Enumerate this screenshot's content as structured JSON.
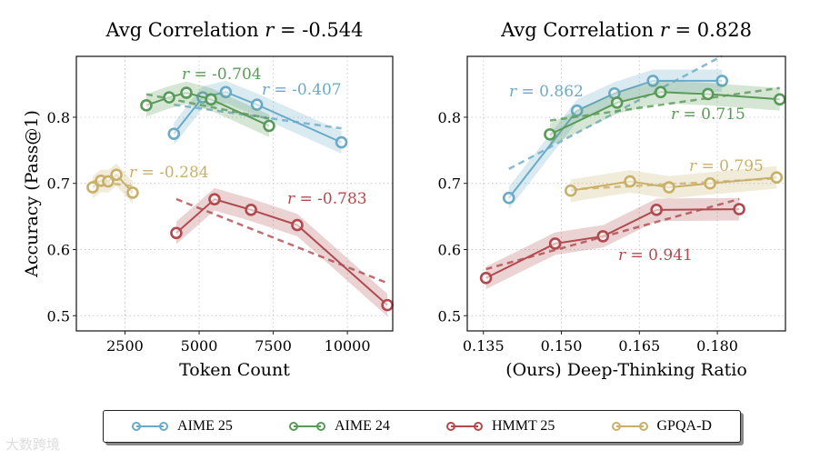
{
  "chart_data": [
    {
      "type": "line",
      "title_prefix": "Avg Correlation ",
      "title_var": "r",
      "title_value": " = -0.544",
      "xlabel": "Token Count",
      "ylabel": "Accuracy (Pass@1)",
      "xlim": [
        860,
        11530
      ],
      "ylim": [
        0.477,
        0.892
      ],
      "xticks": [
        2500,
        5000,
        7500,
        10000
      ],
      "xtick_labels": [
        "2500",
        "5000",
        "7500",
        "10000"
      ],
      "yticks": [
        0.5,
        0.6,
        0.7,
        0.8
      ],
      "ytick_labels": [
        "0.5",
        "0.6",
        "0.7",
        "0.8"
      ],
      "grid": true,
      "series": [
        {
          "name": "AIME 25",
          "r_label": "= -0.407",
          "x": [
            4150,
            5120,
            5900,
            6950,
            9800
          ],
          "y": [
            0.775,
            0.83,
            0.838,
            0.819,
            0.762
          ]
        },
        {
          "name": "AIME 24",
          "r_label": "= -0.704",
          "x": [
            3220,
            3990,
            4570,
            5400,
            7360
          ],
          "y": [
            0.818,
            0.83,
            0.837,
            0.827,
            0.787
          ]
        },
        {
          "name": "HMMT 25",
          "r_label": "= -0.783",
          "x": [
            4230,
            5520,
            6750,
            8310,
            11350
          ],
          "y": [
            0.625,
            0.676,
            0.66,
            0.637,
            0.516
          ]
        },
        {
          "name": "GPQA-D",
          "r_label": "= -0.284",
          "x": [
            1410,
            1690,
            1930,
            2210,
            2760
          ],
          "y": [
            0.694,
            0.704,
            0.703,
            0.713,
            0.686
          ]
        }
      ]
    },
    {
      "type": "line",
      "title_prefix": "Avg Correlation ",
      "title_var": "r",
      "title_value": " = 0.828",
      "xlabel": "(Ours) Deep-Thinking Ratio",
      "ylabel": "",
      "xlim": [
        0.1319,
        0.1931
      ],
      "ylim": [
        0.477,
        0.892
      ],
      "xticks": [
        0.135,
        0.15,
        0.165,
        0.18
      ],
      "xtick_labels": [
        "0.135",
        "0.150",
        "0.165",
        "0.180"
      ],
      "yticks": [
        0.5,
        0.6,
        0.7,
        0.8
      ],
      "ytick_labels": [
        "0.5",
        "0.6",
        "0.7",
        "0.8"
      ],
      "grid": true,
      "series": [
        {
          "name": "AIME 25",
          "r_label": "= 0.862",
          "x": [
            0.1399,
            0.153,
            0.1602,
            0.1676,
            0.1809
          ],
          "y": [
            0.678,
            0.81,
            0.836,
            0.855,
            0.855
          ]
        },
        {
          "name": "AIME 24",
          "r_label": "= 0.715",
          "x": [
            0.1478,
            0.1607,
            0.1691,
            0.1782,
            0.192
          ],
          "y": [
            0.774,
            0.822,
            0.838,
            0.835,
            0.827
          ]
        },
        {
          "name": "HMMT 25",
          "r_label": "= 0.941",
          "x": [
            0.1355,
            0.1488,
            0.158,
            0.1683,
            0.1842
          ],
          "y": [
            0.557,
            0.609,
            0.62,
            0.66,
            0.661
          ]
        },
        {
          "name": "GPQA-D",
          "r_label": "= 0.795",
          "x": [
            0.1518,
            0.1632,
            0.1707,
            0.1786,
            0.1914
          ],
          "y": [
            0.689,
            0.703,
            0.694,
            0.7,
            0.709
          ]
        }
      ]
    }
  ],
  "legend": {
    "placement": "bottom-center",
    "items": [
      "AIME 25",
      "AIME 24",
      "HMMT 25",
      "GPQA-D"
    ]
  },
  "colors": {
    "AIME 25": "#6aaac8",
    "AIME 24": "#5a9a58",
    "HMMT 25": "#b04a4e",
    "GPQA-D": "#c8b06a"
  },
  "watermark": "大数跨境"
}
